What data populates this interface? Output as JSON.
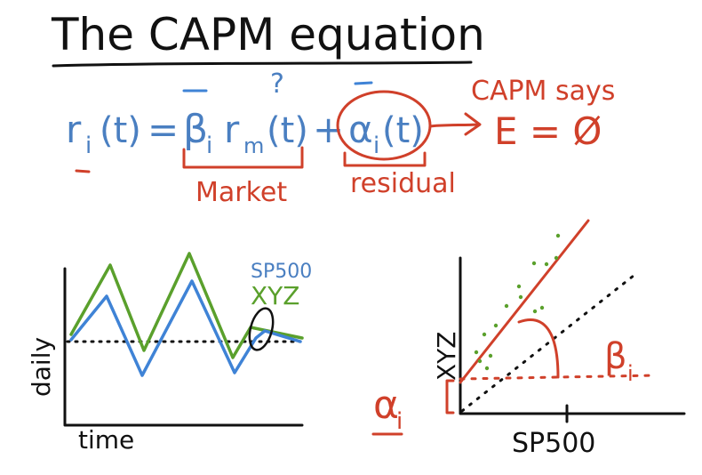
{
  "title": "The CAPM equation",
  "equation": {
    "lhs": "r",
    "lhs_sub": "i",
    "lhs_arg": "(t)",
    "equals": "=",
    "beta": "β",
    "beta_sub": "i",
    "market_r": "r",
    "market_sub": "m",
    "market_arg": "(t)",
    "plus": "+",
    "alpha": "α",
    "alpha_sub": "i",
    "alpha_arg": "(t)",
    "question_mark": "?",
    "market_label": "Market",
    "residual_label": "residual",
    "capm_says": "CAPM says",
    "expectation": "E = Ø"
  },
  "left_plot": {
    "ylabel": "daily",
    "xlabel": "time",
    "legend_sp500": "SP500",
    "legend_xyz": "XYZ"
  },
  "right_plot": {
    "ylabel": "XYZ",
    "xlabel": "SP500",
    "beta_label": "β",
    "beta_sub": "i",
    "alpha_label": "α",
    "alpha_sub": "i"
  },
  "colors": {
    "black_ink": "#111111",
    "blue_ink": "#4a7fc1",
    "red_ink": "#d0402a",
    "green_ink": "#5aa02c"
  }
}
